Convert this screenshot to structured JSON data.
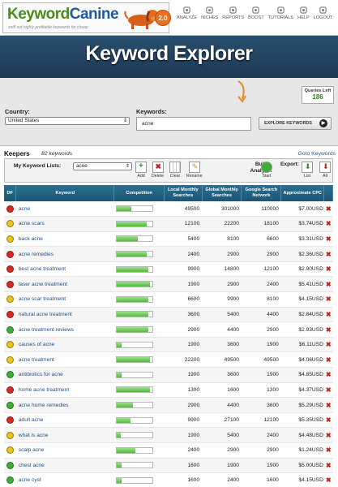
{
  "header": {
    "logo_part1": "Keyword",
    "logo_part2": "Canine",
    "tagline": "sniff out highly profitable keywords for cheap",
    "version_badge": "2.0",
    "nav": [
      {
        "label": "ANALYZE",
        "icon": "analyze-icon"
      },
      {
        "label": "NICHES",
        "icon": "niches-icon"
      },
      {
        "label": "REPORTS",
        "icon": "reports-icon"
      },
      {
        "label": "BOOST",
        "icon": "boost-icon"
      },
      {
        "label": "TUTORIALS",
        "icon": "tutorials-icon"
      },
      {
        "label": "HELP",
        "icon": "help-icon"
      },
      {
        "label": "LOGOUT",
        "icon": "logout-icon"
      }
    ]
  },
  "hero": {
    "title": "Keyword Explorer"
  },
  "search": {
    "queries_left_label": "Queries Left",
    "queries_left_value": "186",
    "country_label": "Country:",
    "country_value": "United States",
    "keywords_label": "Keywords:",
    "keywords_value": "acne",
    "explore_button": "EXPLORE KEYWORDS"
  },
  "keepers": {
    "title": "Keepers",
    "count": "82 keywords",
    "goto": "Goto Keywords",
    "my_lists_label": "My Keyword Lists:",
    "list_value": "acne",
    "tools": [
      "Add",
      "Delete",
      "Clear",
      "Rename"
    ],
    "bulk_label": "Bulk Analyze:",
    "start": "Start",
    "export_label": "Export:",
    "export_list": "List",
    "export_all": "All"
  },
  "colors": {
    "green": "#3fae36",
    "red": "#d42a20",
    "yellow": "#e8c41c",
    "header_blue": "#1d5675"
  },
  "table": {
    "headers": [
      "DF",
      "Keyword",
      "Competition",
      "Local Monthly Searches",
      "Global Monthly Searches",
      "Google Search Network",
      "Approximate CPC"
    ],
    "rows": [
      {
        "df": "red",
        "keyword": "acne",
        "comp": 0.41,
        "local": "49500",
        "global": "301000",
        "network": "110000",
        "cpc": "$7.00USD"
      },
      {
        "df": "yellow",
        "keyword": "acne scars",
        "comp": 0.85,
        "local": "12100",
        "global": "22200",
        "network": "18100",
        "cpc": "$3.74USD"
      },
      {
        "df": "yellow",
        "keyword": "back acne",
        "comp": 0.59,
        "local": "5400",
        "global": "8100",
        "network": "6600",
        "cpc": "$3.31USD"
      },
      {
        "df": "red",
        "keyword": "acne remedies",
        "comp": 0.85,
        "local": "2400",
        "global": "2900",
        "network": "2900",
        "cpc": "$2.36USD"
      },
      {
        "df": "red",
        "keyword": "best acne treatment",
        "comp": 0.89,
        "local": "9900",
        "global": "14800",
        "network": "12100",
        "cpc": "$2.90USD"
      },
      {
        "df": "red",
        "keyword": "laser acne treatment",
        "comp": 0.93,
        "local": "1900",
        "global": "2900",
        "network": "2400",
        "cpc": "$5.41USD"
      },
      {
        "df": "yellow",
        "keyword": "acne scar treatment",
        "comp": 0.89,
        "local": "6600",
        "global": "9900",
        "network": "8100",
        "cpc": "$4.15USD"
      },
      {
        "df": "red",
        "keyword": "natural acne treatment",
        "comp": 0.89,
        "local": "3600",
        "global": "5400",
        "network": "4400",
        "cpc": "$2.84USD"
      },
      {
        "df": "green",
        "keyword": "acne treatment reviews",
        "comp": 0.89,
        "local": "2900",
        "global": "4400",
        "network": "2900",
        "cpc": "$2.93USD"
      },
      {
        "df": "yellow",
        "keyword": "causes of acne",
        "comp": 0.13,
        "local": "1900",
        "global": "3600",
        "network": "1900",
        "cpc": "$6.11USD"
      },
      {
        "df": "yellow",
        "keyword": "acne treatment",
        "comp": 0.93,
        "local": "22200",
        "global": "49500",
        "network": "49500",
        "cpc": "$4.06USD"
      },
      {
        "df": "green",
        "keyword": "antibiotics for acne",
        "comp": 0.15,
        "local": "1900",
        "global": "3600",
        "network": "1900",
        "cpc": "$4.85USD"
      },
      {
        "df": "red",
        "keyword": "home acne treatment",
        "comp": 0.93,
        "local": "1300",
        "global": "1600",
        "network": "1300",
        "cpc": "$4.37USD"
      },
      {
        "df": "green",
        "keyword": "acne home remedies",
        "comp": 0.46,
        "local": "2900",
        "global": "4400",
        "network": "3600",
        "cpc": "$5.29USD"
      },
      {
        "df": "red",
        "keyword": "adult acne",
        "comp": 0.39,
        "local": "9900",
        "global": "27100",
        "network": "12100",
        "cpc": "$5.35USD"
      },
      {
        "df": "yellow",
        "keyword": "what is acne",
        "comp": 0.11,
        "local": "1900",
        "global": "5400",
        "network": "2400",
        "cpc": "$4.48USD"
      },
      {
        "df": "yellow",
        "keyword": "scalp acne",
        "comp": 0.52,
        "local": "2400",
        "global": "2900",
        "network": "2900",
        "cpc": "$1.24USD"
      },
      {
        "df": "green",
        "keyword": "chest acne",
        "comp": 0.13,
        "local": "1600",
        "global": "1900",
        "network": "1900",
        "cpc": "$5.00USD"
      },
      {
        "df": "green",
        "keyword": "acne cyst",
        "comp": 0.13,
        "local": "1600",
        "global": "2400",
        "network": "1600",
        "cpc": "$4.15USD"
      }
    ]
  }
}
